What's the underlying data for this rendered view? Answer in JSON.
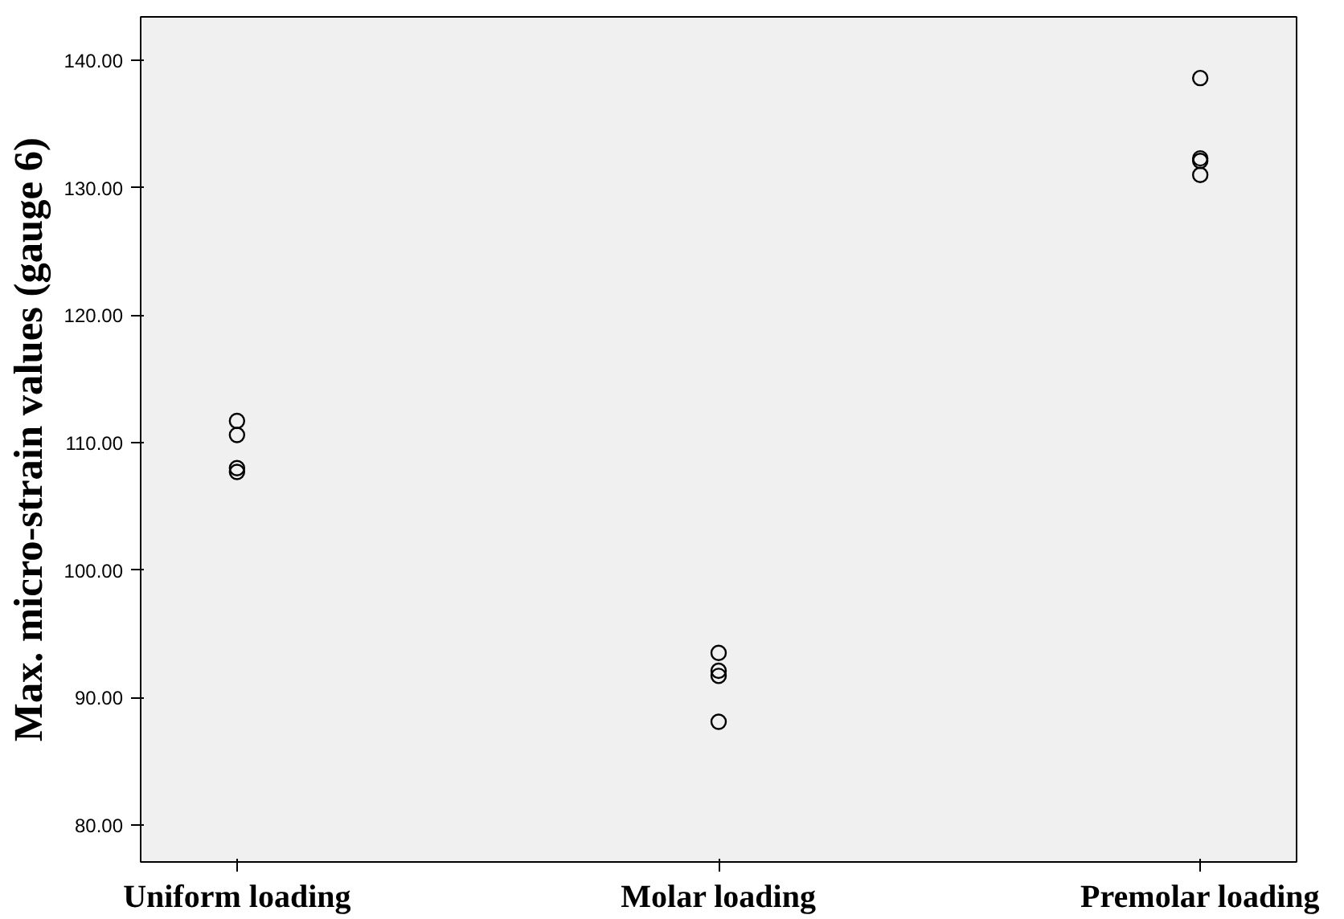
{
  "chart_data": {
    "type": "scatter",
    "ylabel": "Max. micro-strain values (gauge 6)",
    "categories": [
      "Uniform loading",
      "Molar loading",
      "Premolar loading"
    ],
    "series": [
      {
        "color": "#000000",
        "x": [
          "Uniform loading",
          "Uniform loading",
          "Uniform loading",
          "Uniform loading",
          "Molar loading",
          "Molar loading",
          "Molar loading",
          "Molar loading",
          "Premolar loading",
          "Premolar loading",
          "Premolar loading",
          "Premolar loading"
        ],
        "values": [
          111.7,
          110.6,
          108.0,
          107.7,
          93.5,
          92.1,
          91.7,
          88.1,
          138.6,
          132.3,
          132.1,
          131.0
        ]
      }
    ],
    "ylim": [
      77.1,
      143.4
    ],
    "yticks": [
      {
        "value": 80,
        "label": "80.00"
      },
      {
        "value": 90,
        "label": "90.00"
      },
      {
        "value": 100,
        "label": "100.00"
      },
      {
        "value": 110,
        "label": "110.00"
      },
      {
        "value": 120,
        "label": "120.00"
      },
      {
        "value": 130,
        "label": "130.00"
      },
      {
        "value": 140,
        "label": "140.00"
      }
    ],
    "marker": "circle",
    "grid": false
  }
}
